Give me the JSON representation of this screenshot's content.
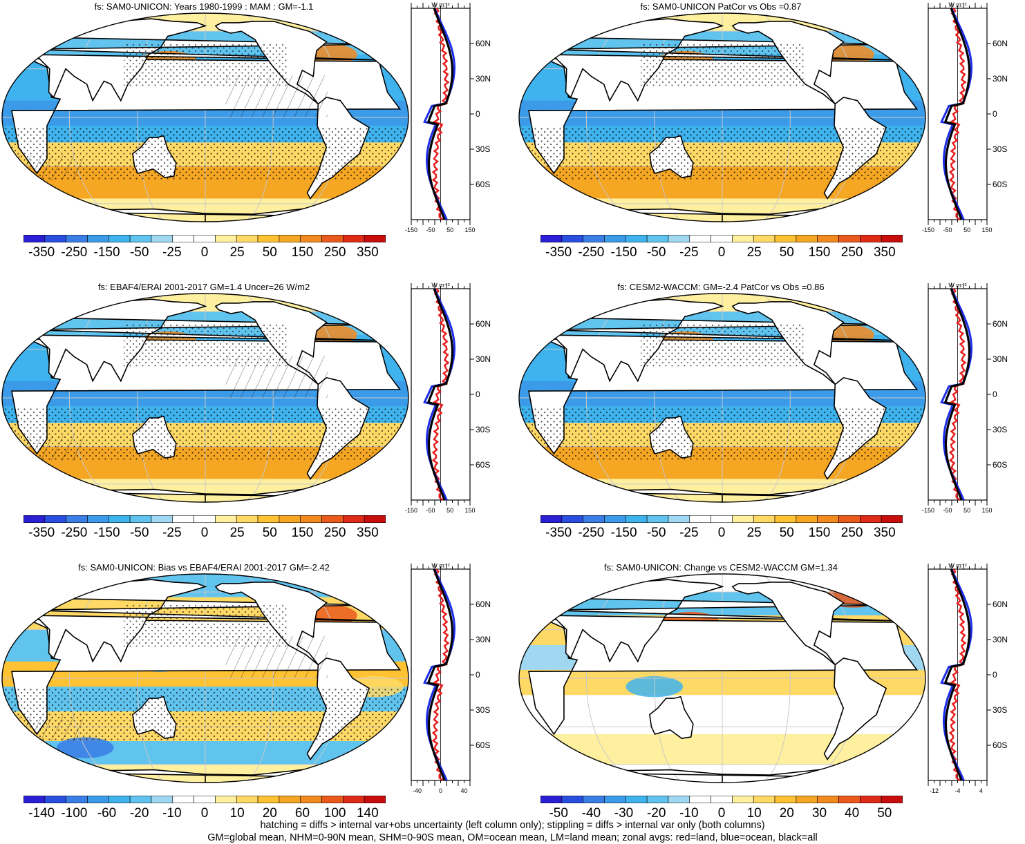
{
  "panels": [
    {
      "title": "fs: SAM0-UNICON: Years 1980-1999 : MAM : GM=-1.1",
      "map_style": "model",
      "hatched": true,
      "cbar_labels": [
        "-350",
        "-250",
        "-150",
        "-50",
        "-25",
        "0",
        "25",
        "50",
        "150",
        "250",
        "350"
      ],
      "zonal_unit": "W m⁻²",
      "zonal_xticks": [
        "-150",
        "-50",
        "50",
        "150"
      ],
      "zonal_lat_labels": [
        "60N",
        "30N",
        "0",
        "30S",
        "60S"
      ]
    },
    {
      "title": "fs: SAM0-UNICON PatCor vs Obs =0.87",
      "map_style": "model",
      "hatched": false,
      "cbar_labels": [
        "-350",
        "-250",
        "-150",
        "-50",
        "-25",
        "0",
        "25",
        "50",
        "150",
        "250",
        "350"
      ],
      "zonal_unit": "W m⁻²",
      "zonal_xticks": [
        "-150",
        "-50",
        "50",
        "150"
      ],
      "zonal_lat_labels": [
        "60N",
        "30N",
        "0",
        "30S",
        "60S"
      ]
    },
    {
      "title": "fs: EBAF4/ERAI 2001-2017 GM=1.4 Uncer=26 W/m2",
      "map_style": "model",
      "hatched": true,
      "cbar_labels": [
        "-350",
        "-250",
        "-150",
        "-50",
        "-25",
        "0",
        "25",
        "50",
        "150",
        "250",
        "350"
      ],
      "zonal_unit": "W m⁻²",
      "zonal_xticks": [
        "-150",
        "-50",
        "50",
        "150"
      ],
      "zonal_lat_labels": [
        "60N",
        "30N",
        "0",
        "30S",
        "60S"
      ]
    },
    {
      "title": "fs: CESM2-WACCM: GM=-2.4 PatCor vs Obs =0.86",
      "map_style": "model",
      "hatched": false,
      "cbar_labels": [
        "-350",
        "-250",
        "-150",
        "-50",
        "-25",
        "0",
        "25",
        "50",
        "150",
        "250",
        "350"
      ],
      "zonal_unit": "W m⁻²",
      "zonal_xticks": [
        "-150",
        "-50",
        "50",
        "150"
      ],
      "zonal_lat_labels": [
        "60N",
        "30N",
        "0",
        "30S",
        "60S"
      ]
    },
    {
      "title": "fs: SAM0-UNICON: Bias vs EBAF4/ERAI 2001-2017 GM=-2.42",
      "map_style": "bias",
      "hatched": true,
      "cbar_labels": [
        "-140",
        "-100",
        "-60",
        "-20",
        "-10",
        "0",
        "10",
        "20",
        "60",
        "100",
        "140"
      ],
      "zonal_unit": "W m⁻²",
      "zonal_xticks": [
        "-40",
        "0",
        "40"
      ],
      "zonal_lat_labels": [
        "60N",
        "30N",
        "0",
        "30S",
        "60S"
      ]
    },
    {
      "title": "fs: SAM0-UNICON: Change vs CESM2-WACCM GM=1.34",
      "map_style": "change",
      "hatched": false,
      "cbar_labels": [
        "-50",
        "-40",
        "-30",
        "-20",
        "-10",
        "0",
        "10",
        "20",
        "30",
        "40",
        "50"
      ],
      "zonal_unit": "W m⁻²",
      "zonal_xticks": [
        "-12",
        "-4",
        "4"
      ],
      "zonal_lat_labels": [
        "60N",
        "30N",
        "0",
        "30S",
        "60S"
      ]
    }
  ],
  "colors": {
    "palette": [
      "#2b1fd6",
      "#2a4fe0",
      "#3a7ee6",
      "#3c9be8",
      "#3fb3ee",
      "#60c4ef",
      "#9fd8f0",
      "#ffffff",
      "#ffffff",
      "#fff0a0",
      "#ffd966",
      "#ffc233",
      "#f5a623",
      "#f28a1f",
      "#ea5a1c",
      "#e02a18",
      "#c80d0d"
    ],
    "land": "#ffffff",
    "coast": "#000000",
    "grid": "#c8c8c8",
    "zonal_land": "#e81d1d",
    "zonal_ocean": "#1d2de8",
    "zonal_all": "#000000"
  },
  "footer": {
    "line1": "hatching = diffs > internal var+obs uncertainty (left column only); stippling = diffs > internal var only (both columns)",
    "line2": "GM=global mean, NHM=0-90N mean, SHM=0-90S mean, OM=ocean mean, LM=land mean; zonal avgs: red=land, blue=ocean, black=all"
  }
}
